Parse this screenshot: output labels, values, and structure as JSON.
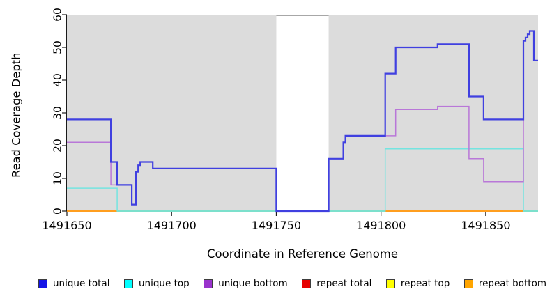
{
  "chart_data": {
    "type": "line",
    "subtype": "step-coverage",
    "title": "",
    "xlabel": "Coordinate in Reference Genome",
    "ylabel": "Read Coverage Depth",
    "xlim": [
      1491650,
      1491875
    ],
    "ylim": [
      0,
      60
    ],
    "x_ticks": [
      1491650,
      1491700,
      1491750,
      1491800,
      1491850
    ],
    "y_ticks": [
      0,
      10,
      20,
      30,
      40,
      50,
      60
    ],
    "plot_background": "#dcdcdc",
    "gap_region": {
      "from": 1491750,
      "to": 1491775,
      "clip_line_value": 60,
      "clip_line_color": "#8a8a8a"
    },
    "series": [
      {
        "name": "unique total",
        "color": "#4040e0",
        "width": 2.2,
        "points": [
          [
            1491650,
            28
          ],
          [
            1491671,
            15
          ],
          [
            1491674,
            8
          ],
          [
            1491681,
            2
          ],
          [
            1491683,
            12
          ],
          [
            1491684,
            14
          ],
          [
            1491685,
            15
          ],
          [
            1491691,
            13
          ],
          [
            1491750,
            0
          ],
          [
            1491775,
            16
          ],
          [
            1491782,
            21
          ],
          [
            1491783,
            23
          ],
          [
            1491802,
            42
          ],
          [
            1491807,
            50
          ],
          [
            1491827,
            51
          ],
          [
            1491842,
            35
          ],
          [
            1491849,
            28
          ],
          [
            1491868,
            52
          ],
          [
            1491869,
            53
          ],
          [
            1491870,
            54
          ],
          [
            1491871,
            55
          ],
          [
            1491873,
            46
          ],
          [
            1491875,
            46
          ]
        ]
      },
      {
        "name": "unique top",
        "color": "#74e4e0",
        "width": 1.5,
        "points": [
          [
            1491650,
            7
          ],
          [
            1491674,
            0
          ],
          [
            1491802,
            19
          ],
          [
            1491868,
            0
          ],
          [
            1491875,
            0
          ]
        ]
      },
      {
        "name": "unique bottom",
        "color": "#b977d8",
        "width": 1.5,
        "points": [
          [
            1491650,
            21
          ],
          [
            1491671,
            8
          ],
          [
            1491681,
            2
          ],
          [
            1491683,
            12
          ],
          [
            1491684,
            14
          ],
          [
            1491685,
            15
          ],
          [
            1491691,
            13
          ],
          [
            1491750,
            0
          ],
          [
            1491775,
            16
          ],
          [
            1491782,
            21
          ],
          [
            1491783,
            23
          ],
          [
            1491807,
            31
          ],
          [
            1491827,
            32
          ],
          [
            1491842,
            16
          ],
          [
            1491849,
            9
          ],
          [
            1491868,
            52
          ],
          [
            1491869,
            53
          ],
          [
            1491870,
            54
          ],
          [
            1491871,
            55
          ],
          [
            1491873,
            46
          ],
          [
            1491875,
            46
          ]
        ]
      },
      {
        "name": "repeat total",
        "color": "#e00000",
        "width": 1.5,
        "points": [
          [
            1491650,
            0
          ],
          [
            1491875,
            0
          ]
        ]
      },
      {
        "name": "repeat top",
        "color": "#f5f200",
        "width": 1.5,
        "points": [
          [
            1491650,
            0
          ],
          [
            1491875,
            0
          ]
        ]
      },
      {
        "name": "repeat bottom",
        "color": "#ff9e1f",
        "width": 2,
        "points": [
          [
            1491650,
            0
          ],
          [
            1491875,
            0
          ]
        ]
      }
    ],
    "baseline_visible_segments": [
      {
        "from": 1491650,
        "to": 1491674,
        "color": "#ff9e1f"
      },
      {
        "from": 1491674,
        "to": 1491802,
        "color": "#95d690"
      },
      {
        "from": 1491802,
        "to": 1491868,
        "color": "#ff9e1f"
      },
      {
        "from": 1491868,
        "to": 1491875,
        "color": "#95d690"
      }
    ]
  },
  "legend": {
    "items": [
      {
        "label": "unique total",
        "color": "#1414e6"
      },
      {
        "label": "unique top",
        "color": "#00ffff"
      },
      {
        "label": "unique bottom",
        "color": "#9933cc"
      },
      {
        "label": "repeat total",
        "color": "#e60000"
      },
      {
        "label": "repeat top",
        "color": "#ffff00"
      },
      {
        "label": "repeat bottom",
        "color": "#ffa500"
      }
    ]
  }
}
